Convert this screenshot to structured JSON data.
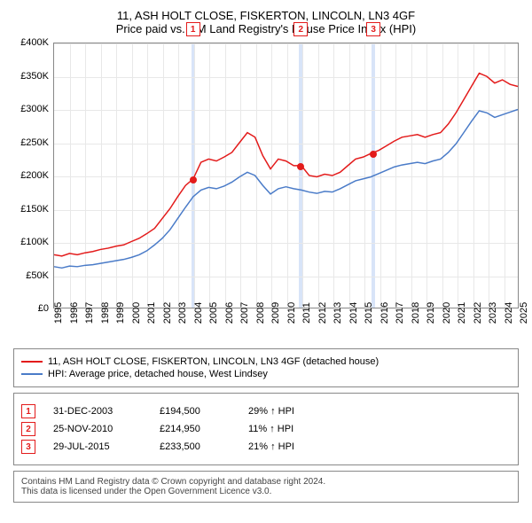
{
  "titles": {
    "main": "11, ASH HOLT CLOSE, FISKERTON, LINCOLN, LN3 4GF",
    "sub": "Price paid vs. HM Land Registry's House Price Index (HPI)"
  },
  "chart": {
    "type": "line",
    "xlim": [
      1995,
      2025
    ],
    "ylim": [
      0,
      400000
    ],
    "ytick_step": 50000,
    "y_labels": [
      "£0",
      "£50K",
      "£100K",
      "£150K",
      "£200K",
      "£250K",
      "£300K",
      "£350K",
      "£400K"
    ],
    "x_labels": [
      "1995",
      "1996",
      "1997",
      "1998",
      "1999",
      "2000",
      "2001",
      "2002",
      "2003",
      "2004",
      "2005",
      "2006",
      "2007",
      "2008",
      "2009",
      "2010",
      "2011",
      "2012",
      "2013",
      "2014",
      "2015",
      "2016",
      "2017",
      "2018",
      "2019",
      "2020",
      "2021",
      "2022",
      "2023",
      "2024",
      "2025"
    ],
    "background_color": "#ffffff",
    "grid_color": "#e8e8e8",
    "axis_color": "#888888",
    "label_fontsize": 11,
    "series": [
      {
        "name": "11, ASH HOLT CLOSE, FISKERTON, LINCOLN, LN3 4GF (detached house)",
        "color": "#e31b1b",
        "line_width": 1.5,
        "data": [
          [
            1995,
            80000
          ],
          [
            1995.5,
            78000
          ],
          [
            1996,
            82000
          ],
          [
            1996.5,
            80000
          ],
          [
            1997,
            83000
          ],
          [
            1997.5,
            85000
          ],
          [
            1998,
            88000
          ],
          [
            1998.5,
            90000
          ],
          [
            1999,
            93000
          ],
          [
            1999.5,
            95000
          ],
          [
            2000,
            100000
          ],
          [
            2000.5,
            105000
          ],
          [
            2001,
            112000
          ],
          [
            2001.5,
            120000
          ],
          [
            2002,
            135000
          ],
          [
            2002.5,
            150000
          ],
          [
            2003,
            168000
          ],
          [
            2003.5,
            185000
          ],
          [
            2004,
            195000
          ],
          [
            2004.5,
            220000
          ],
          [
            2005,
            225000
          ],
          [
            2005.5,
            222000
          ],
          [
            2006,
            228000
          ],
          [
            2006.5,
            235000
          ],
          [
            2007,
            250000
          ],
          [
            2007.5,
            265000
          ],
          [
            2008,
            258000
          ],
          [
            2008.5,
            230000
          ],
          [
            2009,
            210000
          ],
          [
            2009.5,
            225000
          ],
          [
            2010,
            222000
          ],
          [
            2010.5,
            215000
          ],
          [
            2011,
            215000
          ],
          [
            2011.5,
            200000
          ],
          [
            2012,
            198000
          ],
          [
            2012.5,
            202000
          ],
          [
            2013,
            200000
          ],
          [
            2013.5,
            205000
          ],
          [
            2014,
            215000
          ],
          [
            2014.5,
            225000
          ],
          [
            2015,
            228000
          ],
          [
            2015.5,
            233500
          ],
          [
            2016,
            238000
          ],
          [
            2016.5,
            245000
          ],
          [
            2017,
            252000
          ],
          [
            2017.5,
            258000
          ],
          [
            2018,
            260000
          ],
          [
            2018.5,
            262000
          ],
          [
            2019,
            258000
          ],
          [
            2019.5,
            262000
          ],
          [
            2020,
            265000
          ],
          [
            2020.5,
            278000
          ],
          [
            2021,
            295000
          ],
          [
            2021.5,
            315000
          ],
          [
            2022,
            335000
          ],
          [
            2022.5,
            355000
          ],
          [
            2023,
            350000
          ],
          [
            2023.5,
            340000
          ],
          [
            2024,
            345000
          ],
          [
            2024.5,
            338000
          ],
          [
            2025,
            335000
          ]
        ]
      },
      {
        "name": "HPI: Average price, detached house, West Lindsey",
        "color": "#4a7bc8",
        "line_width": 1.5,
        "data": [
          [
            1995,
            62000
          ],
          [
            1995.5,
            60000
          ],
          [
            1996,
            63000
          ],
          [
            1996.5,
            62000
          ],
          [
            1997,
            64000
          ],
          [
            1997.5,
            65000
          ],
          [
            1998,
            67000
          ],
          [
            1998.5,
            69000
          ],
          [
            1999,
            71000
          ],
          [
            1999.5,
            73000
          ],
          [
            2000,
            76000
          ],
          [
            2000.5,
            80000
          ],
          [
            2001,
            86000
          ],
          [
            2001.5,
            95000
          ],
          [
            2002,
            105000
          ],
          [
            2002.5,
            118000
          ],
          [
            2003,
            135000
          ],
          [
            2003.5,
            152000
          ],
          [
            2004,
            168000
          ],
          [
            2004.5,
            178000
          ],
          [
            2005,
            182000
          ],
          [
            2005.5,
            180000
          ],
          [
            2006,
            184000
          ],
          [
            2006.5,
            190000
          ],
          [
            2007,
            198000
          ],
          [
            2007.5,
            205000
          ],
          [
            2008,
            200000
          ],
          [
            2008.5,
            185000
          ],
          [
            2009,
            172000
          ],
          [
            2009.5,
            180000
          ],
          [
            2010,
            183000
          ],
          [
            2010.5,
            180000
          ],
          [
            2011,
            178000
          ],
          [
            2011.5,
            175000
          ],
          [
            2012,
            173000
          ],
          [
            2012.5,
            176000
          ],
          [
            2013,
            175000
          ],
          [
            2013.5,
            180000
          ],
          [
            2014,
            186000
          ],
          [
            2014.5,
            192000
          ],
          [
            2015,
            195000
          ],
          [
            2015.5,
            198000
          ],
          [
            2016,
            203000
          ],
          [
            2016.5,
            208000
          ],
          [
            2017,
            213000
          ],
          [
            2017.5,
            216000
          ],
          [
            2018,
            218000
          ],
          [
            2018.5,
            220000
          ],
          [
            2019,
            218000
          ],
          [
            2019.5,
            222000
          ],
          [
            2020,
            225000
          ],
          [
            2020.5,
            235000
          ],
          [
            2021,
            248000
          ],
          [
            2021.5,
            265000
          ],
          [
            2022,
            282000
          ],
          [
            2022.5,
            298000
          ],
          [
            2023,
            295000
          ],
          [
            2023.5,
            288000
          ],
          [
            2024,
            292000
          ],
          [
            2024.5,
            296000
          ],
          [
            2025,
            300000
          ]
        ]
      }
    ],
    "callouts": [
      {
        "n": "1",
        "x": 2003.95,
        "band_color": "#d8e4f8",
        "marker_color": "#e31b1b",
        "point_y": 195000
      },
      {
        "n": "2",
        "x": 2010.9,
        "band_color": "#d8e4f8",
        "marker_color": "#e31b1b",
        "point_y": 215000
      },
      {
        "n": "3",
        "x": 2015.58,
        "band_color": "#d8e4f8",
        "marker_color": "#e31b1b",
        "point_y": 233500
      }
    ]
  },
  "legend": {
    "items": [
      {
        "label": "11, ASH HOLT CLOSE, FISKERTON, LINCOLN, LN3 4GF (detached house)",
        "color": "#e31b1b"
      },
      {
        "label": "HPI: Average price, detached house, West Lindsey",
        "color": "#4a7bc8"
      }
    ]
  },
  "sales": [
    {
      "n": "1",
      "date": "31-DEC-2003",
      "price": "£194,500",
      "vs_hpi": "29% ↑ HPI",
      "color": "#e31b1b"
    },
    {
      "n": "2",
      "date": "25-NOV-2010",
      "price": "£214,950",
      "vs_hpi": "11% ↑ HPI",
      "color": "#e31b1b"
    },
    {
      "n": "3",
      "date": "29-JUL-2015",
      "price": "£233,500",
      "vs_hpi": "21% ↑ HPI",
      "color": "#e31b1b"
    }
  ],
  "footer": {
    "line1": "Contains HM Land Registry data © Crown copyright and database right 2024.",
    "line2": "This data is licensed under the Open Government Licence v3.0."
  }
}
